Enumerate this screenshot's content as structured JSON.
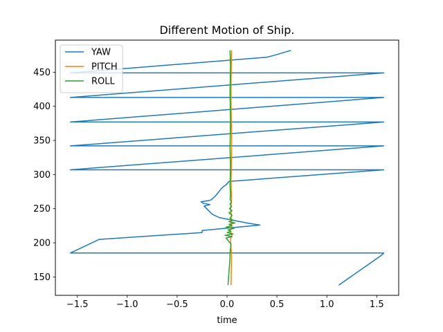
{
  "chart_data": {
    "type": "line",
    "title": "Different Motion of Ship.",
    "xlabel": "time",
    "ylabel": "",
    "xlim": [
      -1.72,
      1.72
    ],
    "ylim": [
      123,
      497
    ],
    "x_ticks": [
      -1.5,
      -1.0,
      -0.5,
      0.0,
      0.5,
      1.0,
      1.5
    ],
    "x_tick_labels": [
      "−1.5",
      "−1.0",
      "−0.5",
      "0.0",
      "0.5",
      "1.0",
      "1.5"
    ],
    "y_ticks": [
      150,
      200,
      250,
      300,
      350,
      400,
      450
    ],
    "y_tick_labels": [
      "150",
      "200",
      "250",
      "300",
      "350",
      "400",
      "450"
    ],
    "grid": false,
    "legend_position": "upper-left",
    "series": [
      {
        "name": "YAW",
        "color": "#1f77b4",
        "points": [
          [
            1.12,
            138
          ],
          [
            1.55,
            182
          ],
          [
            1.57,
            185
          ],
          [
            -1.57,
            185
          ],
          [
            -1.28,
            205
          ],
          [
            -0.25,
            215
          ],
          [
            -0.25,
            218
          ],
          [
            0.33,
            226
          ],
          [
            0.2,
            229
          ],
          [
            -0.08,
            237
          ],
          [
            -0.15,
            242
          ],
          [
            -0.19,
            248
          ],
          [
            -0.23,
            254
          ],
          [
            -0.17,
            256
          ],
          [
            -0.24,
            258
          ],
          [
            -0.26,
            260
          ],
          [
            -0.18,
            262
          ],
          [
            -0.16,
            263
          ],
          [
            -0.12,
            268
          ],
          [
            -0.08,
            275
          ],
          [
            -0.06,
            279
          ],
          [
            -0.04,
            282
          ],
          [
            -0.01,
            285
          ],
          [
            0.02,
            290
          ],
          [
            0.12,
            291
          ],
          [
            1.57,
            307
          ],
          [
            -1.57,
            307
          ],
          [
            1.57,
            342
          ],
          [
            -1.57,
            342
          ],
          [
            1.57,
            377
          ],
          [
            -1.57,
            377
          ],
          [
            1.57,
            413
          ],
          [
            -1.57,
            413
          ],
          [
            1.57,
            449
          ],
          [
            -1.57,
            449
          ],
          [
            0.4,
            472
          ],
          [
            0.48,
            475
          ],
          [
            0.64,
            482
          ]
        ]
      },
      {
        "name": "PITCH",
        "color": "#ff7f0e",
        "points": [
          [
            0.04,
            138
          ],
          [
            0.045,
            180
          ],
          [
            0.035,
            205
          ],
          [
            0.05,
            212
          ],
          [
            0.03,
            218
          ],
          [
            0.05,
            224
          ],
          [
            0.035,
            232
          ],
          [
            0.045,
            240
          ],
          [
            0.035,
            250
          ],
          [
            0.045,
            262
          ],
          [
            0.04,
            290
          ],
          [
            0.045,
            330
          ],
          [
            0.045,
            360
          ],
          [
            0.04,
            400
          ],
          [
            0.04,
            440
          ],
          [
            0.045,
            482
          ]
        ]
      },
      {
        "name": "ROLL",
        "color": "#2ca02c",
        "points": [
          [
            0.01,
            138
          ],
          [
            0.03,
            178
          ],
          [
            0.03,
            185
          ],
          [
            0.04,
            198
          ],
          [
            -0.01,
            207
          ],
          [
            0.05,
            209
          ],
          [
            -0.02,
            211
          ],
          [
            0.06,
            213
          ],
          [
            0.0,
            215
          ],
          [
            0.04,
            217
          ],
          [
            0.01,
            219
          ],
          [
            0.07,
            221
          ],
          [
            -0.01,
            223
          ],
          [
            0.05,
            225
          ],
          [
            0.02,
            227
          ],
          [
            0.08,
            229
          ],
          [
            0.02,
            231
          ],
          [
            0.06,
            233
          ],
          [
            0.03,
            236
          ],
          [
            0.05,
            240
          ],
          [
            0.02,
            244
          ],
          [
            0.05,
            247
          ],
          [
            0.025,
            250
          ],
          [
            0.045,
            253
          ],
          [
            0.03,
            257
          ],
          [
            0.045,
            260
          ],
          [
            0.03,
            264
          ],
          [
            0.035,
            270
          ],
          [
            0.03,
            285
          ],
          [
            0.035,
            310
          ],
          [
            0.03,
            340
          ],
          [
            0.035,
            380
          ],
          [
            0.03,
            420
          ],
          [
            0.035,
            460
          ],
          [
            0.03,
            482
          ]
        ]
      }
    ]
  }
}
